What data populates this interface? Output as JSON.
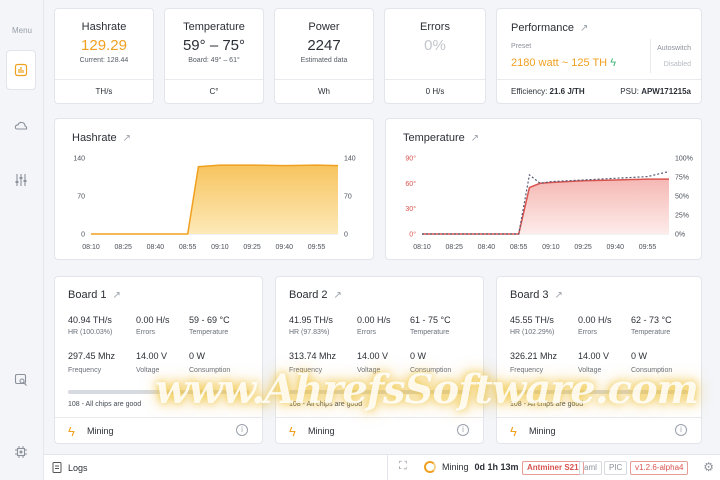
{
  "sidebar": {
    "menu_label": "Menu"
  },
  "stats": {
    "hashrate": {
      "title": "Hashrate",
      "value": "129.29",
      "sub": "Current: 128.44",
      "unit": "TH/s"
    },
    "temperature": {
      "title": "Temperature",
      "value": "59° – 75°",
      "sub": "Board: 49° – 61°",
      "unit": "C°"
    },
    "power": {
      "title": "Power",
      "value": "2247",
      "sub": "Estimated data",
      "unit": "Wh"
    },
    "errors": {
      "title": "Errors",
      "value": "0%",
      "sub": "",
      "unit": "0 H/s"
    }
  },
  "performance": {
    "title": "Performance",
    "preset_label": "Preset",
    "preset_value": "2180 watt ~ 125 TH",
    "autoswitch_label": "Autoswitch",
    "autoswitch_value": "Disabled",
    "efficiency_label": "Efficiency:",
    "efficiency_value": "21.6 J/TH",
    "psu_label": "PSU:",
    "psu_value": "APW171215a"
  },
  "hashrate_chart": {
    "title": "Hashrate",
    "y_ticks_left": [
      "140",
      "70",
      "0"
    ],
    "y_ticks_right": [
      "140",
      "70",
      "0"
    ],
    "x_ticks": [
      "08:10",
      "08:25",
      "08:40",
      "08:55",
      "09:10",
      "09:25",
      "09:40",
      "09:55"
    ]
  },
  "temperature_chart": {
    "title": "Temperature",
    "y_ticks_left": [
      "90°",
      "60°",
      "30°",
      "0°"
    ],
    "y_ticks_right": [
      "100%",
      "75%",
      "50%",
      "25%",
      "0%"
    ],
    "x_ticks": [
      "08:10",
      "08:25",
      "08:40",
      "08:55",
      "09:10",
      "09:25",
      "09:40",
      "09:55"
    ]
  },
  "chart_data": [
    {
      "type": "area",
      "title": "Hashrate",
      "x": [
        "08:10",
        "08:25",
        "08:40",
        "08:55",
        "09:00",
        "09:10",
        "09:25",
        "09:40",
        "09:55",
        "10:05"
      ],
      "series": [
        {
          "values": [
            0,
            0,
            0,
            0,
            124,
            127,
            127,
            126,
            127,
            126
          ]
        }
      ],
      "ylim": [
        0,
        140
      ],
      "colors": {
        "line": "#f0a01f",
        "fill": "#f7c45f"
      }
    },
    {
      "type": "line",
      "title": "Temperature",
      "x": [
        "08:10",
        "08:25",
        "08:40",
        "08:55",
        "09:00",
        "09:05",
        "09:10",
        "09:25",
        "09:40",
        "09:55",
        "10:05"
      ],
      "series": [
        {
          "values": [
            0,
            0,
            0,
            0,
            55,
            60,
            61,
            63,
            64,
            65,
            65
          ]
        },
        {
          "values": [
            0,
            0,
            0,
            0,
            70,
            60,
            62,
            64,
            66,
            68,
            74
          ]
        }
      ],
      "ylim": [
        0,
        90
      ],
      "y2lim": [
        0,
        100
      ],
      "colors": {
        "line": "#d9534f",
        "fill": "#f5b8b4",
        "dashed": "#555a73"
      }
    }
  ],
  "boards": [
    {
      "title": "Board 1",
      "hr": "40.94 TH/s",
      "hr_label": "HR (100.03%)",
      "errors": "0.00 H/s",
      "errors_label": "Errors",
      "temp": "59 - 69 °C",
      "temp_label": "Temperature",
      "freq": "297.45 Mhz",
      "freq_label": "Frequency",
      "volt": "14.00 V",
      "volt_label": "Voltage",
      "cons": "0 W",
      "cons_label": "Consumption",
      "chips": "108 - All chips are good",
      "status": "Mining"
    },
    {
      "title": "Board 2",
      "hr": "41.95 TH/s",
      "hr_label": "HR (97.83%)",
      "errors": "0.00 H/s",
      "errors_label": "Errors",
      "temp": "61 - 75 °C",
      "temp_label": "Temperature",
      "freq": "313.74 Mhz",
      "freq_label": "Frequency",
      "volt": "14.00 V",
      "volt_label": "Voltage",
      "cons": "0 W",
      "cons_label": "Consumption",
      "chips": "108 - All chips are good",
      "status": "Mining"
    },
    {
      "title": "Board 3",
      "hr": "45.55 TH/s",
      "hr_label": "HR (102.29%)",
      "errors": "0.00 H/s",
      "errors_label": "Errors",
      "temp": "62 - 73 °C",
      "temp_label": "Temperature",
      "freq": "326.21 Mhz",
      "freq_label": "Frequency",
      "volt": "14.00 V",
      "volt_label": "Voltage",
      "cons": "0 W",
      "cons_label": "Consumption",
      "chips": "108 - All chips are good",
      "status": "Mining"
    }
  ],
  "bottombar": {
    "logs": "Logs",
    "status": "Mining",
    "uptime": "0d 1h 13m",
    "model": "Antminer S21",
    "aml": "aml",
    "pic": "PIC",
    "version": "v1.2.6-alpha4"
  },
  "watermark": "www.AhrefsSoftware.com"
}
